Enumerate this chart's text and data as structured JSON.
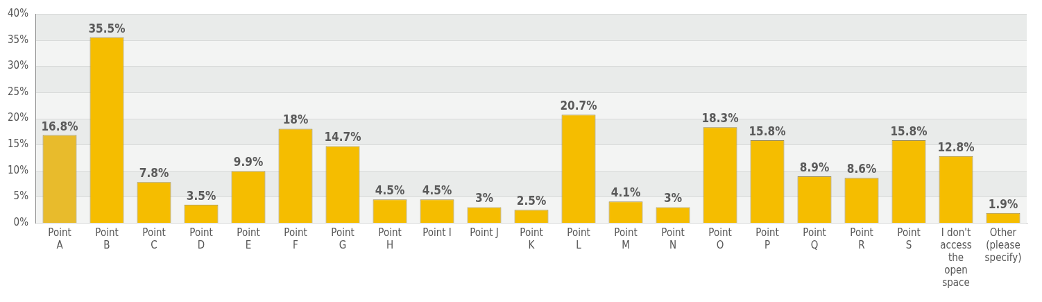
{
  "chart_data": {
    "type": "bar",
    "categories": [
      "Point A",
      "Point B",
      "Point C",
      "Point D",
      "Point E",
      "Point F",
      "Point G",
      "Point H",
      "Point I",
      "Point J",
      "Point K",
      "Point L",
      "Point M",
      "Point N",
      "Point O",
      "Point P",
      "Point Q",
      "Point R",
      "Point S",
      "I don't access the open space",
      "Other (please specify)"
    ],
    "values": [
      16.8,
      35.5,
      7.8,
      3.5,
      9.9,
      18,
      14.7,
      4.5,
      4.5,
      3,
      2.5,
      20.7,
      4.1,
      3,
      18.3,
      15.8,
      8.9,
      8.6,
      15.8,
      12.8,
      1.9
    ],
    "colors": [
      "#e8bb2c",
      "#f5bd00",
      "#f5bd00",
      "#f5bd00",
      "#f5bd00",
      "#f5bd00",
      "#f5bd00",
      "#f5bd00",
      "#f5bd00",
      "#f5bd00",
      "#f5bd00",
      "#f5bd00",
      "#f5bd00",
      "#f5bd00",
      "#f5bd00",
      "#f5bd00",
      "#f5bd00",
      "#f5bd00",
      "#f5bd00",
      "#f5bd00",
      "#f5bd00"
    ],
    "ylim": [
      0,
      40
    ],
    "yticks": [
      {
        "value": 0,
        "label": "0%"
      },
      {
        "value": 5,
        "label": "5%"
      },
      {
        "value": 10,
        "label": "10%"
      },
      {
        "value": 15,
        "label": "15%"
      },
      {
        "value": 20,
        "label": "20%"
      },
      {
        "value": 25,
        "label": "25%"
      },
      {
        "value": 30,
        "label": "30%"
      },
      {
        "value": 35,
        "label": "35%"
      },
      {
        "value": 40,
        "label": "40%"
      }
    ],
    "value_labels": [
      "16.8%",
      "35.5%",
      "7.8%",
      "3.5%",
      "9.9%",
      "18%",
      "14.7%",
      "4.5%",
      "4.5%",
      "3%",
      "2.5%",
      "20.7%",
      "4.1%",
      "3%",
      "18.3%",
      "15.8%",
      "8.9%",
      "8.6%",
      "15.8%",
      "12.8%",
      "1.9%"
    ],
    "grid": true,
    "legend": false
  }
}
